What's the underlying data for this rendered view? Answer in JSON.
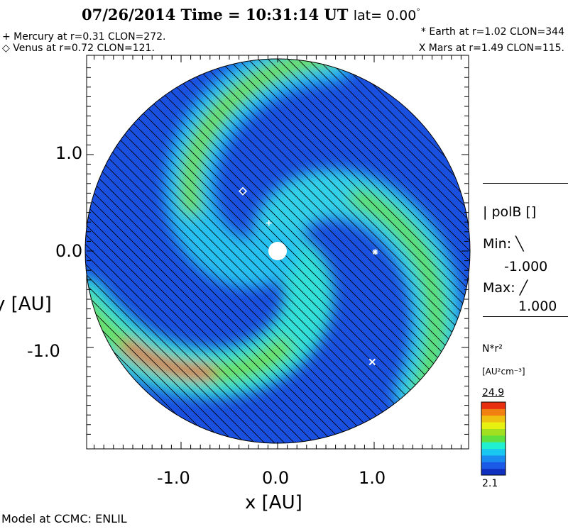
{
  "chart_data": {
    "type": "heatmap",
    "title_date": "07/26/2014",
    "title_time": "Time = 10:31:14 UT",
    "title_lat": "lat= 0.00",
    "title_degree": "°",
    "xlabel": "x [AU]",
    "ylabel": "y [AU]",
    "xlim": [
      -1.98,
      1.98
    ],
    "ylim": [
      -2.02,
      2.02
    ],
    "domain_radius_au": 2.0,
    "x_ticks": [
      {
        "v": -1.0,
        "label": "-1.0"
      },
      {
        "v": 0.0,
        "label": "0.0"
      },
      {
        "v": 1.0,
        "label": "1.0"
      }
    ],
    "y_ticks": [
      {
        "v": 1.0,
        "label": "1.0"
      },
      {
        "v": 0.0,
        "label": "0.0"
      },
      {
        "v": -1.0,
        "label": "-1.0"
      }
    ],
    "planets": [
      {
        "name": "Mercury",
        "symbol": "+",
        "r": 0.31,
        "clon": 272,
        "x": -0.09,
        "y": 0.29,
        "label": "+ Mercury at r=0.31 CLON=272."
      },
      {
        "name": "Venus",
        "symbol": "diamond",
        "r": 0.72,
        "clon": 121,
        "x": -0.36,
        "y": 0.62,
        "label": "◇ Venus at r=0.72 CLON=121."
      },
      {
        "name": "Earth",
        "symbol": "*",
        "r": 1.02,
        "clon": 344,
        "x": 1.01,
        "y": -0.01,
        "label": "* Earth at  r=1.02 CLON=344"
      },
      {
        "name": "Mars",
        "symbol": "x",
        "r": 1.49,
        "clon": 115,
        "x": 0.98,
        "y": -1.15,
        "label": "X Mars at r=1.49 CLON=115."
      }
    ],
    "polarity_legend": {
      "title": "polB []",
      "min_label": "Min:",
      "min_value": "-1.000",
      "max_label": "Max:",
      "max_value": "1.000"
    },
    "colorbar": {
      "variable": "N*r²",
      "units": "[AU²cm⁻³]",
      "max": 24.9,
      "min": 2.1,
      "max_label": "24.9",
      "min_label": "2.1",
      "colors": [
        "#1030c0",
        "#1a5ae6",
        "#1a8cf0",
        "#18c8f0",
        "#20f0d0",
        "#60e040",
        "#a0e020",
        "#e8f010",
        "#f0c010",
        "#f08010",
        "#e83010"
      ]
    },
    "arms": [
      {
        "theta0_deg": -15,
        "color": "#30e0d8",
        "peak_color": "#70e040"
      },
      {
        "theta0_deg": 105,
        "color": "#30d0e8",
        "peak_color": "#60e050"
      },
      {
        "theta0_deg": 225,
        "color": "#28c0f0",
        "peak_color": "#70e040"
      }
    ]
  },
  "footer": "Model at CCMC: ENLIL"
}
